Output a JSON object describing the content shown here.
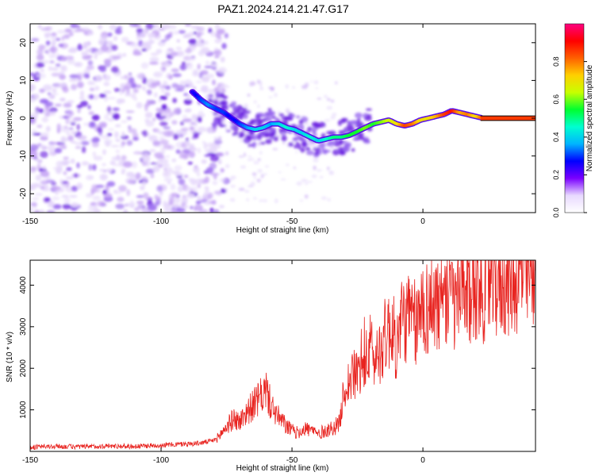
{
  "figure": {
    "title": "PAZ1.2024.214.21.47.G17"
  },
  "colors": {
    "background": "#ffffff",
    "axis": "#000000",
    "snr_line": "#e8231f",
    "ridge_line": "#000000",
    "scatter_palette": [
      "#e6d8fb",
      "#c8a8f5",
      "#9a6bf0",
      "#6a1fe0"
    ],
    "colorbar_stops": [
      "#ffffff",
      "#e8d9ff",
      "#7a00ff",
      "#0000ff",
      "#00b4ff",
      "#00ffd0",
      "#00ff30",
      "#c8ff00",
      "#ffd000",
      "#ff6000",
      "#ff0000",
      "#ff0080"
    ]
  },
  "chart_data": [
    {
      "type": "heatmap",
      "title": "",
      "xlabel": "Height of straight line (km)",
      "ylabel": "Frequency (Hz)",
      "xlim": [
        -150,
        43
      ],
      "ylim": [
        -25,
        25
      ],
      "x_ticks": [
        -150,
        -100,
        -50,
        0
      ],
      "x_tick_labels": [
        "-150",
        "-100",
        "-50",
        "0"
      ],
      "y_ticks": [
        -20,
        -10,
        0,
        10,
        20
      ],
      "y_tick_labels": [
        "-20",
        "-10",
        "0",
        "10",
        "20"
      ],
      "colorbar": {
        "label": "Normalized spectral amplitude",
        "range": [
          0,
          1
        ],
        "ticks": [
          0.0,
          0.2,
          0.4,
          0.6,
          0.8
        ],
        "tick_labels": [
          "0.0",
          "0.2",
          "0.4",
          "0.6",
          "0.8"
        ]
      },
      "ridge": {
        "x": [
          -88,
          -85,
          -82,
          -79,
          -76,
          -73,
          -70,
          -67,
          -64,
          -61,
          -58,
          -55,
          -52,
          -49,
          -46,
          -43,
          -40,
          -37,
          -34,
          -31,
          -28,
          -25,
          -22,
          -19,
          -16,
          -13,
          -10,
          -7,
          -4,
          -1,
          2,
          5,
          8,
          11,
          14,
          17,
          20,
          23,
          26,
          30,
          35,
          40
        ],
        "y": [
          7,
          5,
          3.5,
          2.5,
          1.5,
          0,
          -1.5,
          -2.5,
          -3,
          -2.5,
          -1.5,
          -1.5,
          -2.5,
          -3,
          -4,
          -5,
          -6,
          -5.5,
          -5,
          -5,
          -4.5,
          -3.5,
          -2.5,
          -1.5,
          -1,
          -0.5,
          -1.5,
          -2,
          -1.5,
          -0.5,
          0,
          0.5,
          1,
          2,
          1.5,
          1,
          0.5,
          0,
          0,
          0,
          0,
          0
        ],
        "amplitude": [
          0.25,
          0.3,
          0.35,
          0.3,
          0.3,
          0.25,
          0.3,
          0.35,
          0.4,
          0.4,
          0.35,
          0.4,
          0.45,
          0.4,
          0.4,
          0.45,
          0.4,
          0.45,
          0.5,
          0.5,
          0.55,
          0.55,
          0.6,
          0.55,
          0.6,
          0.65,
          0.7,
          0.85,
          0.8,
          0.7,
          0.7,
          0.75,
          0.85,
          0.9,
          0.75,
          0.8,
          0.7,
          0.85,
          0.95,
          0.95,
          0.95,
          0.95
        ]
      }
    },
    {
      "type": "line",
      "title": "",
      "xlabel": "Height of straight line (km)",
      "ylabel": "SNR (10 * v/v)",
      "xlim": [
        -150,
        43
      ],
      "ylim": [
        0,
        4600
      ],
      "x_ticks": [
        -150,
        -100,
        -50,
        0
      ],
      "x_tick_labels": [
        "-150",
        "-100",
        "-50",
        "0"
      ],
      "y_ticks": [
        1000,
        2000,
        3000,
        4000
      ],
      "y_tick_labels": [
        "1000",
        "2000",
        "3000",
        "4000"
      ],
      "series": [
        {
          "x": [
            -150,
            -140,
            -130,
            -120,
            -110,
            -100,
            -90,
            -85,
            -80,
            -78,
            -75,
            -72,
            -70,
            -68,
            -65,
            -62,
            -60,
            -58,
            -55,
            -52,
            -50,
            -48,
            -45,
            -42,
            -40,
            -38,
            -35,
            -32,
            -30,
            -28,
            -25,
            -22,
            -20,
            -18,
            -15,
            -12,
            -10,
            -8,
            -5,
            -2,
            0,
            2,
            5,
            8,
            10,
            12,
            15,
            18,
            20,
            25,
            30,
            35,
            40,
            43
          ],
          "y": [
            100,
            120,
            110,
            130,
            120,
            150,
            180,
            200,
            260,
            350,
            600,
            800,
            700,
            900,
            1100,
            1300,
            1500,
            1100,
            800,
            600,
            500,
            450,
            550,
            500,
            420,
            480,
            550,
            650,
            1500,
            1700,
            1900,
            2100,
            2500,
            2200,
            2700,
            3000,
            2500,
            3200,
            3200,
            3000,
            3600,
            3400,
            3700,
            3300,
            3800,
            3500,
            3900,
            3700,
            3900,
            4000,
            4100,
            4200,
            4300,
            4250
          ]
        }
      ]
    }
  ]
}
